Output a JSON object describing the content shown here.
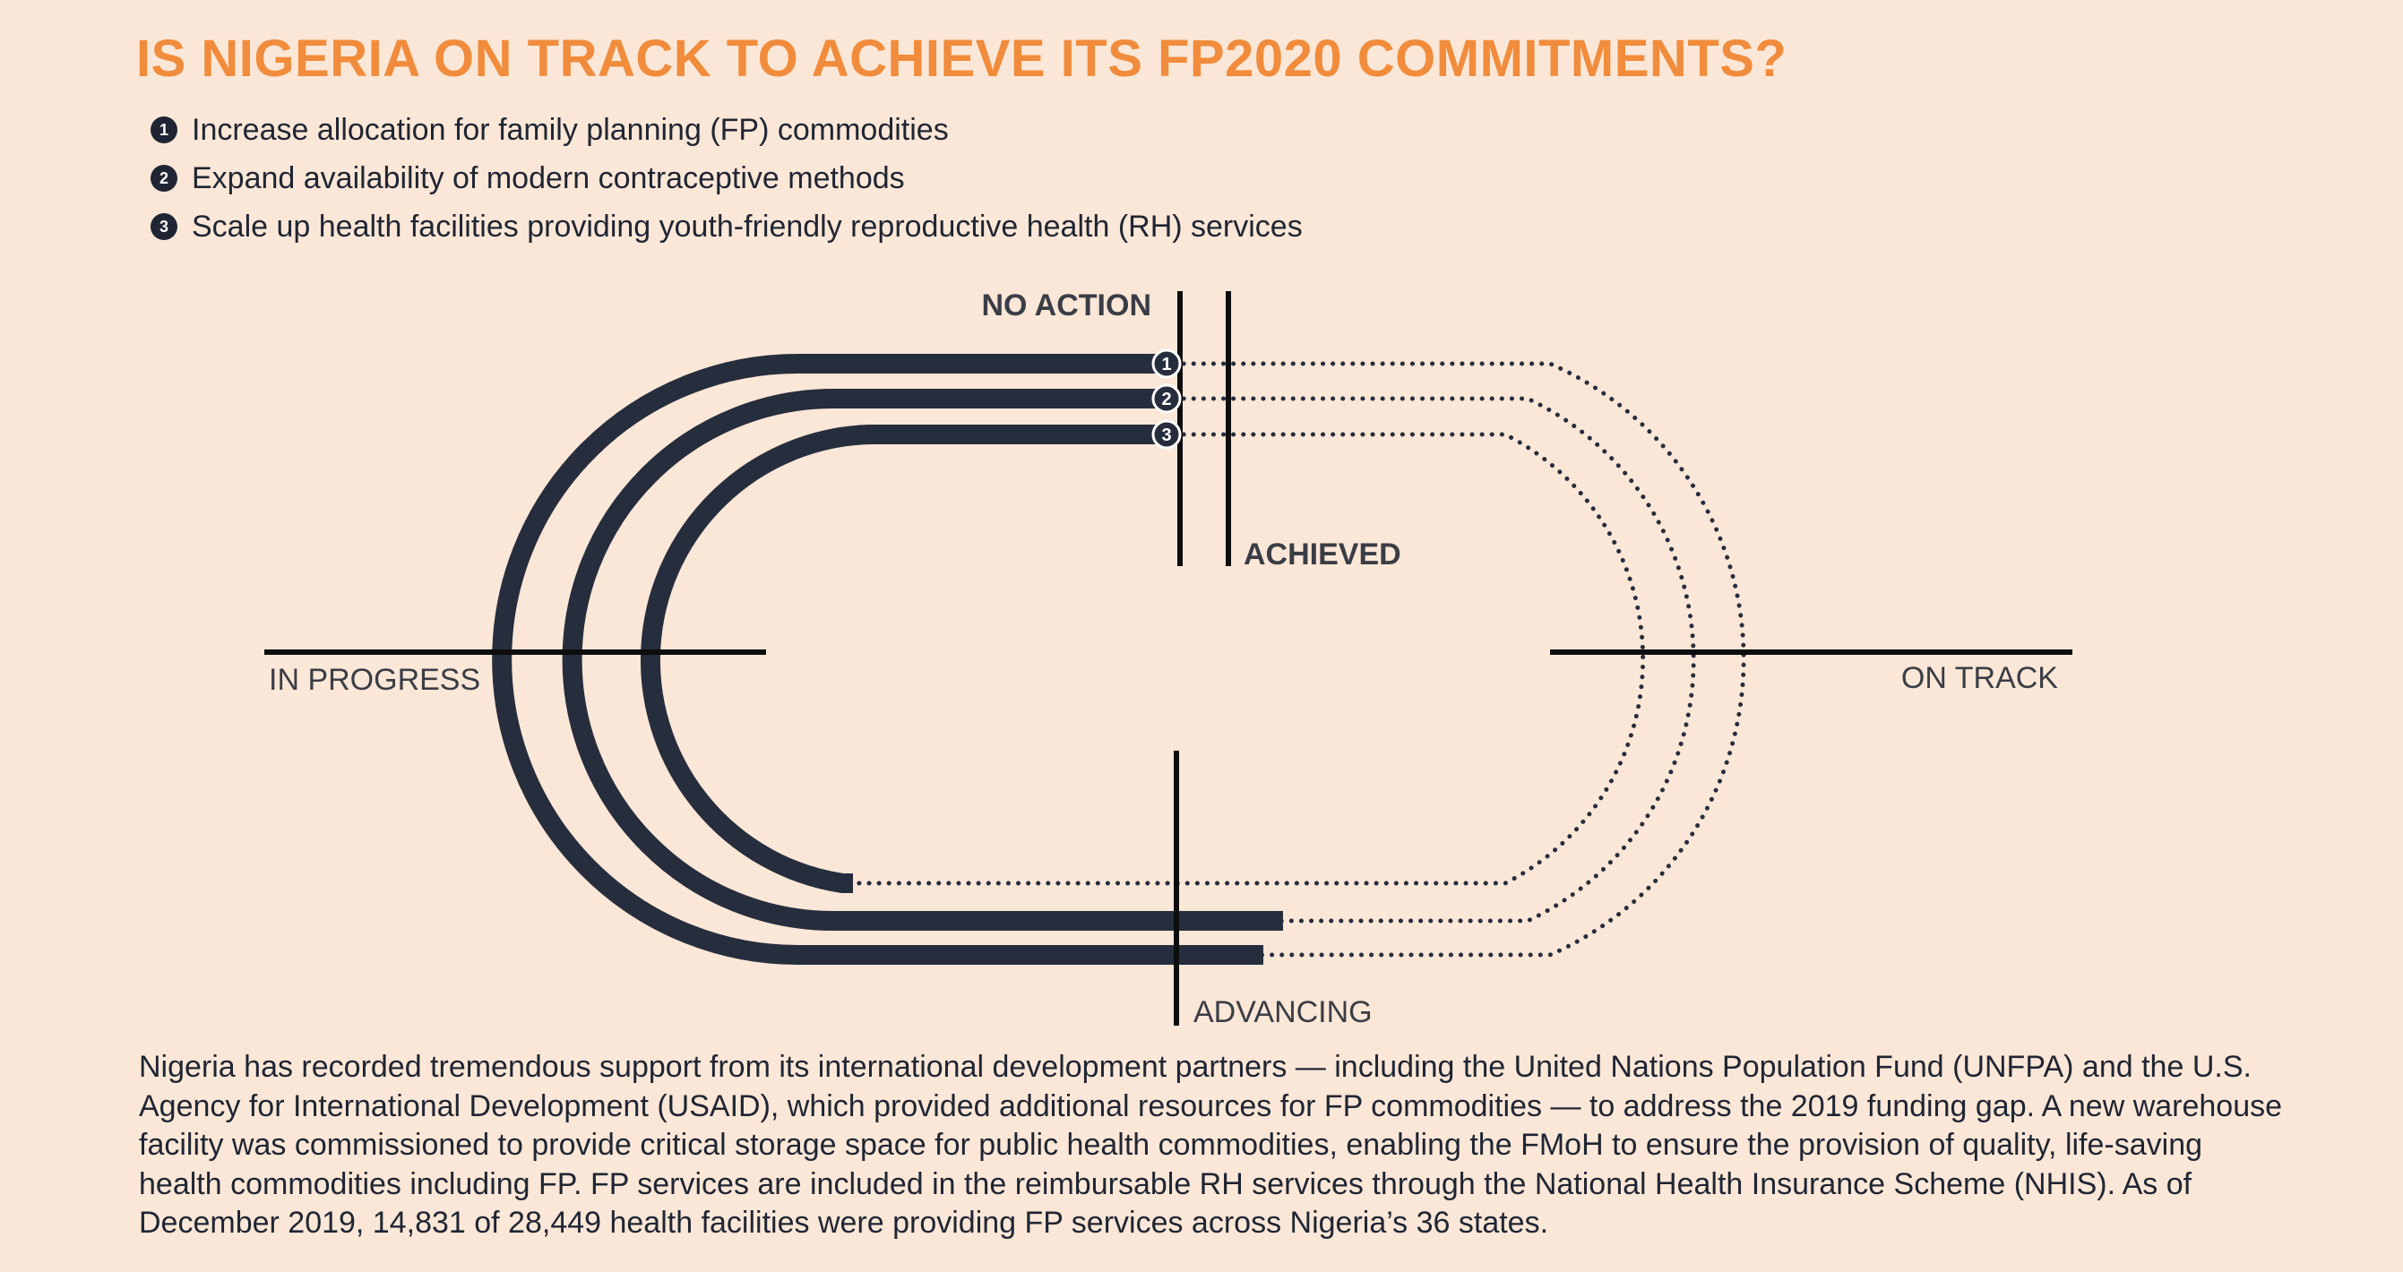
{
  "title": "IS NIGERIA ON TRACK TO ACHIEVE ITS FP2020 COMMITMENTS?",
  "commitments": [
    {
      "number": "1",
      "text": "Increase allocation for family planning (FP) commodities"
    },
    {
      "number": "2",
      "text": "Expand availability of modern contraceptive methods"
    },
    {
      "number": "3",
      "text": "Scale up health facilities providing youth-friendly reproductive health (RH) services"
    }
  ],
  "track": {
    "labels": {
      "no_action": "NO ACTION",
      "achieved": "ACHIEVED",
      "in_progress": "IN PROGRESS",
      "on_track": "ON TRACK",
      "advancing": "ADVANCING"
    },
    "lane_markers": [
      "1",
      "2",
      "3"
    ],
    "colors": {
      "track": "#262d3d",
      "accent": "#f08c3c",
      "background": "#fbe7d7"
    }
  },
  "paragraph": "Nigeria has recorded tremendous support from its international development partners — including the United Nations Population Fund (UNFPA) and the U.S. Agency for International Development (USAID), which provided additional resources for FP commodities — to address the 2019 funding gap. A new warehouse facility was commissioned to provide critical storage space for public health commodities, enabling the FMoH to ensure the provision of quality, life-saving health commodities including FP. FP services are included in the reimbursable RH services through the National Health Insurance Scheme (NHIS). As of December 2019, 14,831 of 28,449 health facilities were providing FP services across Nigeria’s 36 states."
}
